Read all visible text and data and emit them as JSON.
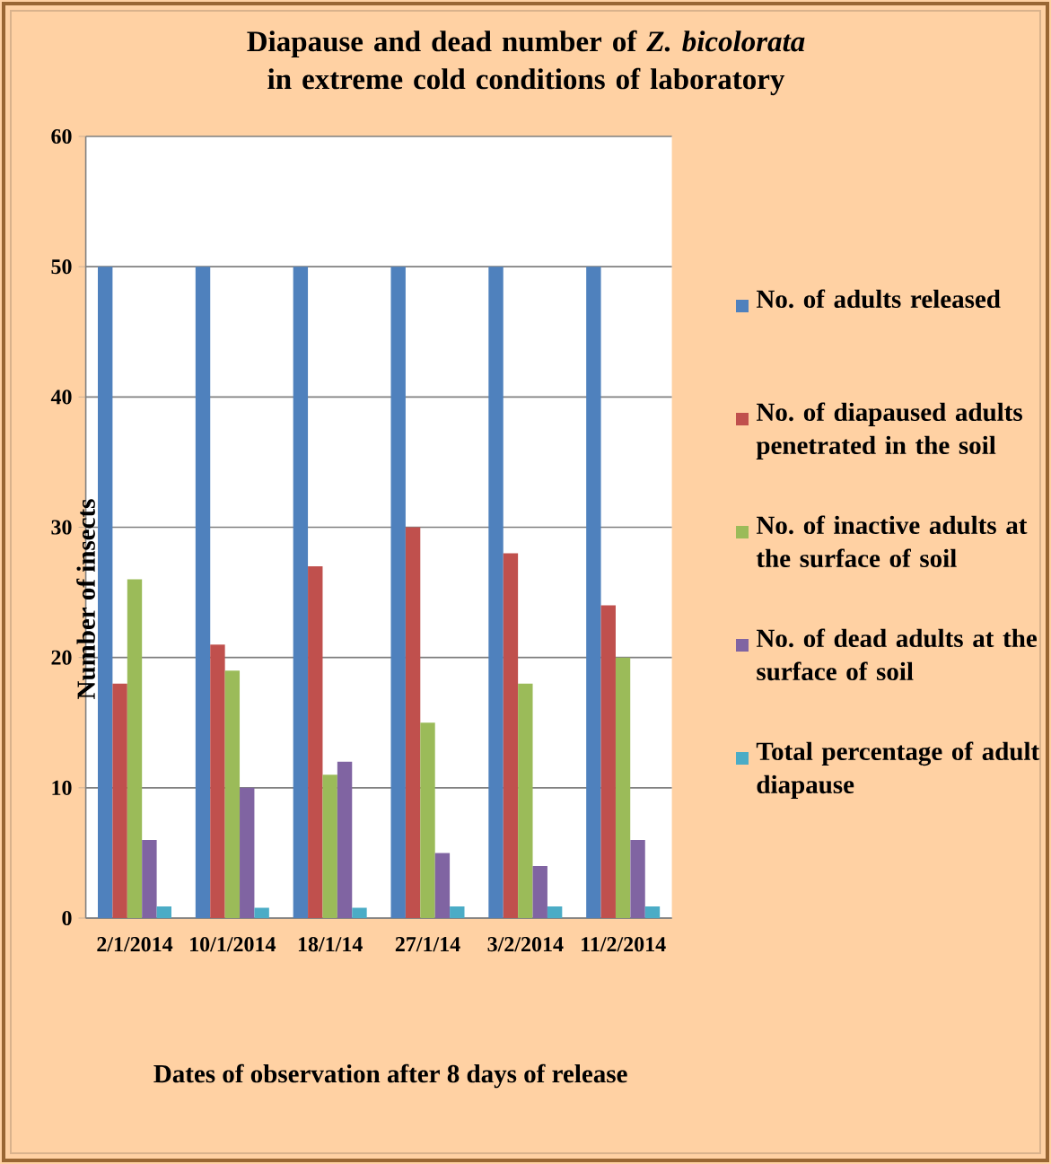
{
  "chart_data": {
    "type": "bar",
    "title": "Diapause and dead number of *Z. bicolorata* in extreme cold conditions of laboratory",
    "xlabel": "Dates of observation after 8 days of release",
    "ylabel": "Number of insects",
    "categories": [
      "2/1/2014",
      "10/1/2014",
      "18/1/14",
      "27/1/14",
      "3/2/2014",
      "11/2/2014"
    ],
    "series": [
      {
        "name": "No. of adults released",
        "color": "#4f81bd",
        "values": [
          50,
          50,
          50,
          50,
          50,
          50
        ]
      },
      {
        "name": "No. of diapaused adults penetrated in the soil",
        "color": "#c0504d",
        "values": [
          18,
          21,
          27,
          30,
          28,
          24
        ]
      },
      {
        "name": "No. of inactive adults at the surface of soil",
        "color": "#9bbb59",
        "values": [
          26,
          19,
          11,
          15,
          18,
          20
        ]
      },
      {
        "name": "No. of dead adults at the surface of soil",
        "color": "#8064a2",
        "values": [
          6,
          10,
          12,
          5,
          4,
          6
        ]
      },
      {
        "name": "Total percentage of adult diapause",
        "color": "#4bacc6",
        "values": [
          0.9,
          0.8,
          0.8,
          0.9,
          0.9,
          0.9
        ]
      }
    ],
    "ylim": [
      0,
      60
    ],
    "yticks": [
      0,
      10,
      20,
      30,
      40,
      50,
      60
    ],
    "grid": "y",
    "legend": "right"
  }
}
